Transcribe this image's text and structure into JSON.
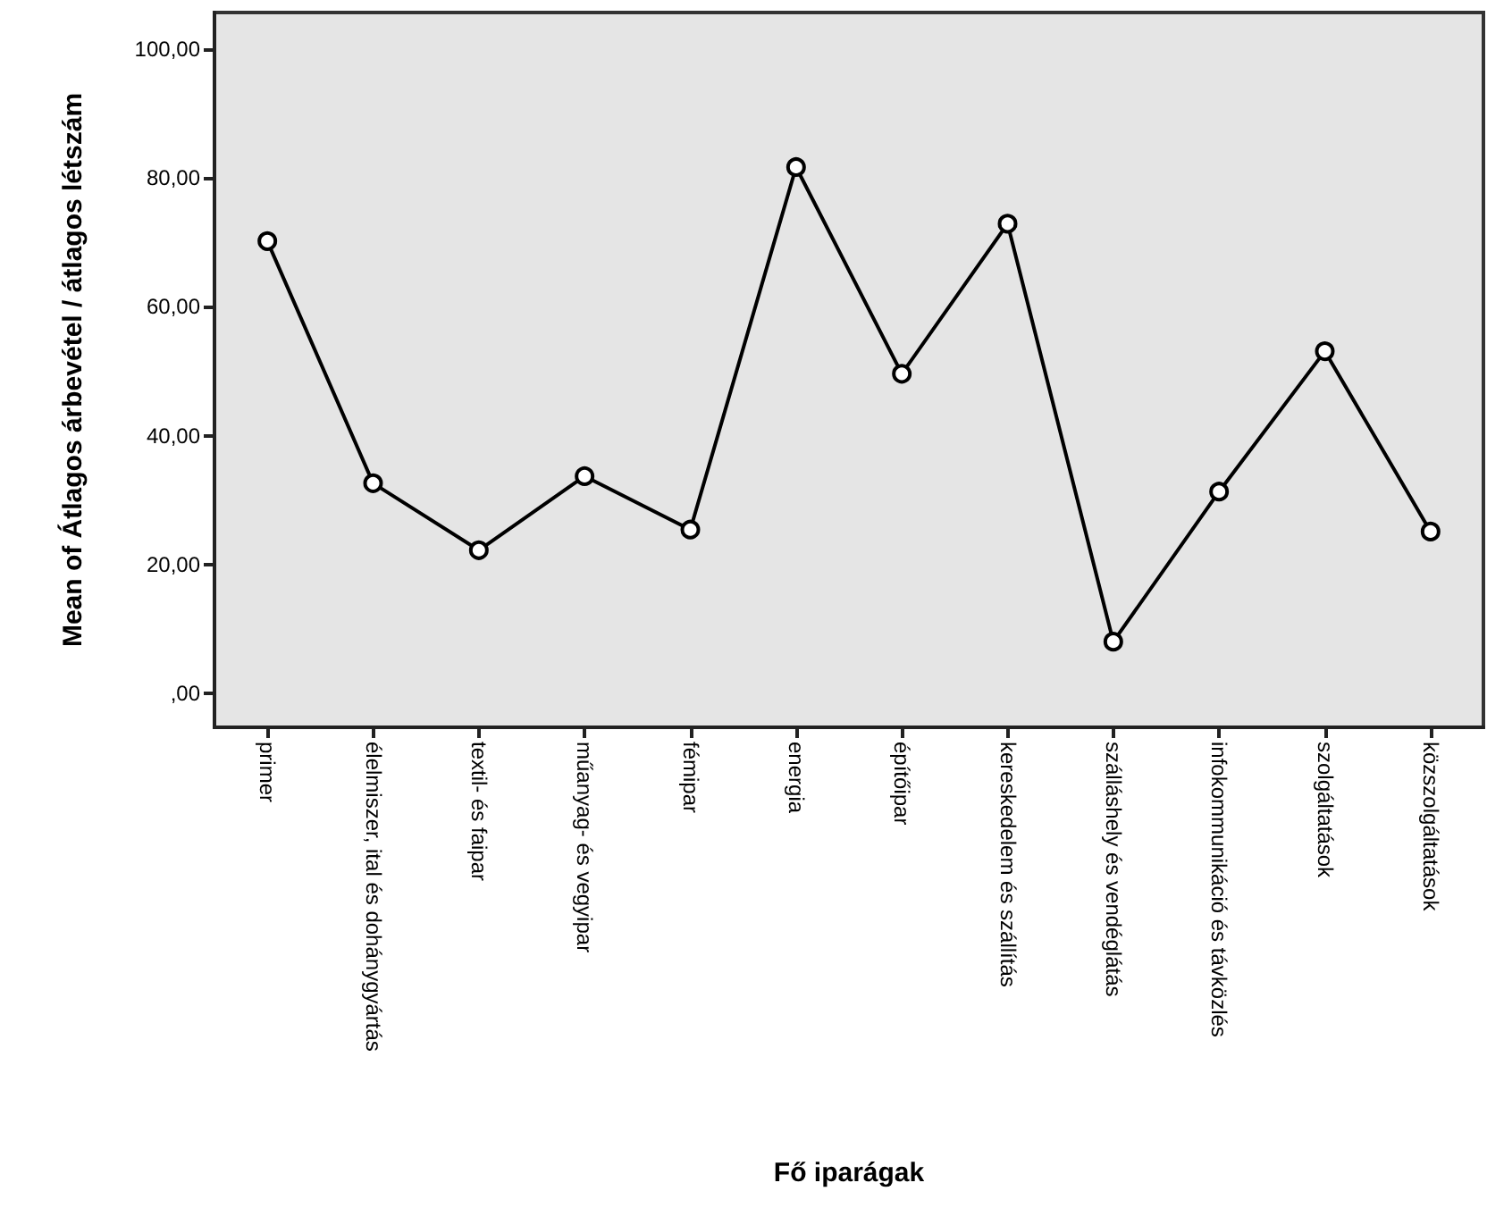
{
  "chart_data": {
    "type": "line",
    "xlabel": "Fő iparágak",
    "ylabel": "Mean of Átlagos árbevétel / átlagos létszám",
    "categories": [
      "primer",
      "élelmiszer, ital és dohánygyártás",
      "textil- és faipar",
      "műanyag- és vegyipar",
      "fémipar",
      "energia",
      "építőipar",
      "kereskedelem és szállítás",
      "szálláshely és vendéglátás",
      "infokommunikáció és távközlés",
      "szolgáltatások",
      "közszolgáltatások"
    ],
    "series": [
      {
        "color": "#000000",
        "values": [
          70.2,
          32.6,
          22.2,
          33.7,
          25.4,
          81.7,
          49.6,
          72.9,
          8.0,
          31.3,
          53.1,
          25.1
        ]
      }
    ],
    "ylim": [
      -5.3,
      105.7
    ],
    "yticks": [
      {
        "value": 0,
        "label": ",00"
      },
      {
        "value": 20,
        "label": "20,00"
      },
      {
        "value": 40,
        "label": "40,00"
      },
      {
        "value": 60,
        "label": "60,00"
      },
      {
        "value": 80,
        "label": "80,00"
      },
      {
        "value": 100,
        "label": "100,00"
      }
    ],
    "grid": false,
    "marker": "circle",
    "line_style": "solid"
  }
}
